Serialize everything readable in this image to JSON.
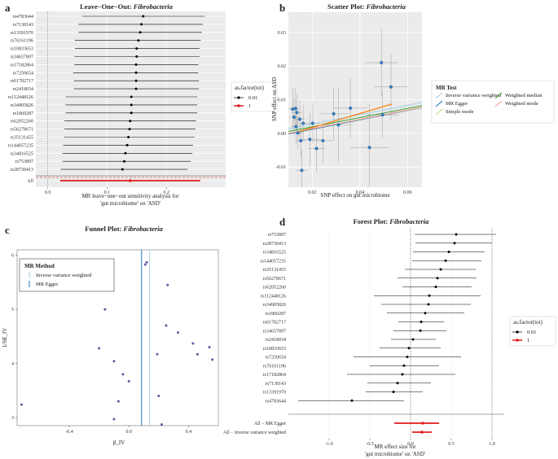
{
  "panels": {
    "a": {
      "letter": "a",
      "title_prefix": "Leave−One−Out: ",
      "title_taxon": "Fibrobacteria",
      "xlabel_line1": "MR leave−one−out sensitivity analysis for",
      "xlabel_line2": "'gut microbiome' on 'ASD'",
      "legend_title": "as.factor(tot)",
      "legend_items": [
        "0.01",
        "1"
      ]
    },
    "b": {
      "letter": "b",
      "title_prefix": "Scatter Plot: ",
      "title_taxon": "Fibrobacteria",
      "xlabel": "SNP effect on gut microbiome",
      "ylabel": "SNP effect on ASD",
      "legend_title": "MR Test",
      "legend_items": [
        "Inverse variance weighted",
        "MR Egger",
        "Simple mode",
        "Weighted median",
        "Weighted mode"
      ]
    },
    "c": {
      "letter": "c",
      "title_prefix": "Funnel Plot: ",
      "title_taxon": "Fibrobacteria",
      "xlabel": "β_IV",
      "ylabel": "1/SE_IV",
      "legend_title": "MR Method",
      "legend_items": [
        "Inverse variance weighted",
        "MR Egger"
      ]
    },
    "d": {
      "letter": "d",
      "title_prefix": "Forest Plot: ",
      "title_taxon": "Fibrobacteria",
      "xlabel_line1": "MR effect size for",
      "xlabel_line2": "'gut microbiome' on 'ASD'",
      "legend_title": "as.factor(tot)",
      "legend_items": [
        "0.01",
        "1"
      ]
    }
  },
  "colors": {
    "ivw": "#a6cee3",
    "egger": "#1f78b4",
    "simple_mode": "#b2df8a",
    "weighted_median": "#33a02c",
    "weighted_mode": "#fb9a99",
    "fit_line": "#ff7f0e",
    "summary": "#e31a1c",
    "points": "#3a7ab5",
    "funnel_points": "#5a5aa8"
  },
  "chart_data": [
    {
      "id": "a",
      "type": "forest",
      "title": "Leave−One−Out: Fibrobacteria",
      "xlim": [
        -0.02,
        0.3
      ],
      "xticks": [
        0.0,
        0.1,
        0.2
      ],
      "snps": [
        "rs4783644",
        "rs7138143",
        "rs13391970",
        "rs76161196",
        "rs10833653",
        "rs34657897",
        "rs17182864",
        "rs7250654",
        "rs61782717",
        "rs2418034",
        "rs112448126",
        "rs34905826",
        "rs1860287",
        "rs62052260",
        "rs56278671",
        "rs35131455",
        "rs144057235",
        "rs34816525",
        "rs753897",
        "rs28730413"
      ],
      "estimates": [
        0.161,
        0.158,
        0.156,
        0.153,
        0.15,
        0.15,
        0.149,
        0.149,
        0.149,
        0.149,
        0.141,
        0.141,
        0.141,
        0.139,
        0.138,
        0.136,
        0.134,
        0.131,
        0.129,
        0.126
      ],
      "lower": [
        0.058,
        0.052,
        0.052,
        0.046,
        0.046,
        0.045,
        0.045,
        0.043,
        0.044,
        0.044,
        0.03,
        0.03,
        0.03,
        0.028,
        0.028,
        0.028,
        0.026,
        0.025,
        0.025,
        0.022
      ],
      "upper": [
        0.265,
        0.262,
        0.26,
        0.258,
        0.256,
        0.256,
        0.254,
        0.254,
        0.255,
        0.255,
        0.252,
        0.252,
        0.252,
        0.25,
        0.249,
        0.248,
        0.245,
        0.244,
        0.241,
        0.236
      ],
      "summary_label": "All",
      "summary": {
        "est": 0.139,
        "lower": 0.021,
        "upper": 0.257
      }
    },
    {
      "id": "b",
      "type": "scatter",
      "title": "Scatter Plot: Fibrobacteria",
      "xlim": [
        0.01,
        0.066
      ],
      "ylim": [
        -0.016,
        0.036
      ],
      "xticks": [
        0.02,
        0.04,
        0.06
      ],
      "yticks": [
        -0.01,
        0.0,
        0.01,
        0.02,
        0.03
      ],
      "points": [
        {
          "x": 0.0118,
          "y": 0.0072,
          "xerr": 0.002,
          "yerr": 0.006
        },
        {
          "x": 0.0124,
          "y": 0.0048,
          "xerr": 0.002,
          "yerr": 0.0055
        },
        {
          "x": 0.013,
          "y": 0.0074,
          "xerr": 0.002,
          "yerr": 0.006
        },
        {
          "x": 0.0132,
          "y": 0.002,
          "xerr": 0.002,
          "yerr": 0.005
        },
        {
          "x": 0.0136,
          "y": 0.0062,
          "xerr": 0.0022,
          "yerr": 0.0055
        },
        {
          "x": 0.014,
          "y": 0.0001,
          "xerr": 0.0022,
          "yerr": 0.005
        },
        {
          "x": 0.0148,
          "y": 0.0042,
          "xerr": 0.0022,
          "yerr": 0.0055
        },
        {
          "x": 0.0152,
          "y": -0.0022,
          "xerr": 0.0022,
          "yerr": 0.005
        },
        {
          "x": 0.0156,
          "y": -0.011,
          "xerr": 0.0024,
          "yerr": 0.006
        },
        {
          "x": 0.0162,
          "y": 0.003,
          "xerr": 0.0024,
          "yerr": 0.0055
        },
        {
          "x": 0.019,
          "y": -0.0018,
          "xerr": 0.005,
          "yerr": 0.008
        },
        {
          "x": 0.0202,
          "y": 0.003,
          "xerr": 0.003,
          "yerr": 0.006
        },
        {
          "x": 0.0218,
          "y": -0.0045,
          "xerr": 0.0035,
          "yerr": 0.007
        },
        {
          "x": 0.0245,
          "y": -0.0022,
          "xerr": 0.004,
          "yerr": 0.0065
        },
        {
          "x": 0.029,
          "y": 0.0058,
          "xerr": 0.006,
          "yerr": 0.008
        },
        {
          "x": 0.031,
          "y": 0.0025,
          "xerr": 0.006,
          "yerr": 0.011
        },
        {
          "x": 0.036,
          "y": 0.0075,
          "xerr": 0.007,
          "yerr": 0.009
        },
        {
          "x": 0.044,
          "y": -0.0042,
          "xerr": 0.008,
          "yerr": 0.013
        },
        {
          "x": 0.049,
          "y": 0.021,
          "xerr": 0.007,
          "yerr": 0.01
        },
        {
          "x": 0.0495,
          "y": 0.0055,
          "xerr": 0.007,
          "yerr": 0.007
        },
        {
          "x": 0.053,
          "y": 0.0138,
          "xerr": 0.007,
          "yerr": 0.01
        }
      ],
      "lines": [
        {
          "name": "Inverse variance weighted",
          "slope": 0.139,
          "intercept": 0.0
        },
        {
          "name": "MR Egger",
          "slope": 0.14,
          "intercept": -0.0016
        },
        {
          "name": "Simple mode",
          "slope": 0.138,
          "intercept": -0.0014
        },
        {
          "name": "Weighted median",
          "slope": 0.137,
          "intercept": -0.0008
        },
        {
          "name": "Weighted mode",
          "slope": 0.139,
          "intercept": -0.0014
        },
        {
          "name": "Fit",
          "slope": 0.21,
          "intercept": -0.0025
        }
      ]
    },
    {
      "id": "c",
      "type": "scatter",
      "title": "Funnel Plot: Fibrobacteria",
      "xlim": [
        -0.75,
        0.6
      ],
      "ylim": [
        2.85,
        6.1
      ],
      "xticks": [
        -0.4,
        0.0,
        0.4
      ],
      "yticks": [
        3,
        4,
        5,
        6
      ],
      "points": [
        {
          "x": -0.72,
          "y": 3.24
        },
        {
          "x": -0.16,
          "y": 5.0
        },
        {
          "x": -0.2,
          "y": 4.28
        },
        {
          "x": -0.1,
          "y": 4.04
        },
        {
          "x": -0.04,
          "y": 3.8
        },
        {
          "x": 0.0,
          "y": 3.67
        },
        {
          "x": -0.07,
          "y": 3.3
        },
        {
          "x": -0.1,
          "y": 2.97
        },
        {
          "x": 0.11,
          "y": 5.83
        },
        {
          "x": 0.12,
          "y": 5.87
        },
        {
          "x": 0.26,
          "y": 5.45
        },
        {
          "x": 0.25,
          "y": 4.7
        },
        {
          "x": 0.33,
          "y": 4.57
        },
        {
          "x": 0.43,
          "y": 4.37
        },
        {
          "x": 0.46,
          "y": 4.17
        },
        {
          "x": 0.54,
          "y": 4.3
        },
        {
          "x": 0.56,
          "y": 4.07
        },
        {
          "x": 0.19,
          "y": 4.17
        },
        {
          "x": 0.2,
          "y": 3.4
        },
        {
          "x": 0.22,
          "y": 2.87
        }
      ],
      "vlines": [
        {
          "name": "Inverse variance weighted",
          "x": 0.139
        },
        {
          "name": "MR Egger",
          "x": 0.085
        }
      ]
    },
    {
      "id": "d",
      "type": "forest",
      "title": "Forest Plot: Fibrobacteria",
      "xlim": [
        -1.5,
        1.15
      ],
      "xticks": [
        -1.0,
        -0.5,
        0.0,
        0.5,
        1.0
      ],
      "snps": [
        "rs753897",
        "rs28730413",
        "rs34816525",
        "rs144057235",
        "rs35131455",
        "rs56278671",
        "rs62052260",
        "rs112448126",
        "rs34905826",
        "rs1860287",
        "rs61782717",
        "rs34657897",
        "rs2418034",
        "rs10833653",
        "rs7250654",
        "rs76161196",
        "rs17182864",
        "rs7138143",
        "rs13391970",
        "rs4783644"
      ],
      "estimates": [
        0.56,
        0.54,
        0.47,
        0.43,
        0.37,
        0.33,
        0.31,
        0.23,
        0.22,
        0.18,
        0.13,
        0.12,
        0.03,
        -0.02,
        -0.04,
        -0.08,
        -0.1,
        -0.16,
        -0.21,
        -0.72
      ],
      "lower": [
        0.05,
        0.06,
        0.03,
        0.02,
        -0.07,
        -0.16,
        -0.1,
        -0.45,
        -0.36,
        -0.29,
        -0.15,
        -0.21,
        -0.24,
        -0.38,
        -0.7,
        -0.5,
        -0.78,
        -0.53,
        -0.55,
        -1.38
      ],
      "upper": [
        1.05,
        1.0,
        0.91,
        0.87,
        0.8,
        0.81,
        0.75,
        0.86,
        0.74,
        0.66,
        0.41,
        0.44,
        0.31,
        0.37,
        0.62,
        0.35,
        0.55,
        0.25,
        0.15,
        -0.08
      ],
      "summaries": [
        {
          "label": "All − MR Egger",
          "est": 0.15,
          "lower": -0.2,
          "upper": 0.35
        },
        {
          "label": "All − Inverse variance weighted",
          "est": 0.14,
          "lower": 0.02,
          "upper": 0.26
        }
      ]
    }
  ]
}
